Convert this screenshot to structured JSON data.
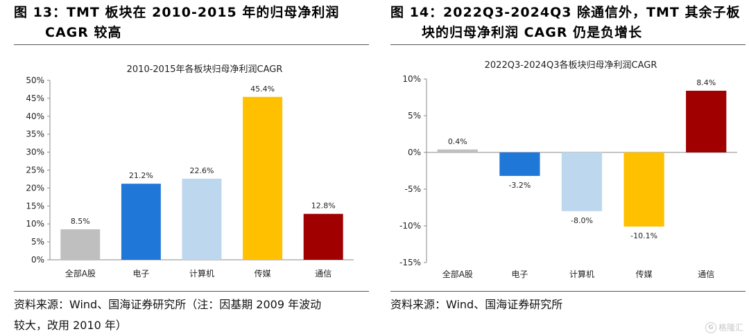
{
  "left_figure": {
    "title_line1": "图 13：TMT 板块在 2010-2015 年的归母净利润",
    "title_line2": "CAGR 较高",
    "source_line1": "资料来源：Wind、国海证券研究所（注：因基期 2009 年波动",
    "source_line2": "较大，改用 2010 年）"
  },
  "right_figure": {
    "title_line1": "图 14：2022Q3-2024Q3 除通信外，TMT 其余子板",
    "title_line2": "块的归母净利润 CAGR 仍是负增长",
    "source_line1": "资料来源：Wind、国海证券研究所"
  },
  "watermark": {
    "logo": "G",
    "text": "格隆汇"
  },
  "chart_data": [
    {
      "type": "bar",
      "title": "2010-2015年各板块归母净利润CAGR",
      "categories": [
        "全部A股",
        "电子",
        "计算机",
        "传媒",
        "通信"
      ],
      "values": [
        8.5,
        21.2,
        22.6,
        45.4,
        12.8
      ],
      "labels": [
        "8.5%",
        "21.2%",
        "22.6%",
        "45.4%",
        "12.8%"
      ],
      "colors": [
        "#bfbfbf",
        "#1f77d8",
        "#bdd7ee",
        "#ffc000",
        "#a10000"
      ],
      "ylim": [
        0,
        50
      ],
      "yticks": [
        "0%",
        "5%",
        "10%",
        "15%",
        "20%",
        "25%",
        "30%",
        "35%",
        "40%",
        "45%",
        "50%"
      ],
      "grid": false
    },
    {
      "type": "bar",
      "title": "2022Q3-2024Q3各板块归母净利润CAGR",
      "categories": [
        "全部A股",
        "电子",
        "计算机",
        "传媒",
        "通信"
      ],
      "values": [
        0.4,
        -3.2,
        -8.0,
        -10.1,
        8.4
      ],
      "labels": [
        "0.4%",
        "-3.2%",
        "-8.0%",
        "-10.1%",
        "8.4%"
      ],
      "colors": [
        "#bfbfbf",
        "#1f77d8",
        "#bdd7ee",
        "#ffc000",
        "#a10000"
      ],
      "ylim": [
        -15,
        10
      ],
      "yticks": [
        "-15%",
        "-10%",
        "-5%",
        "0%",
        "5%",
        "10%"
      ],
      "grid": false
    }
  ]
}
